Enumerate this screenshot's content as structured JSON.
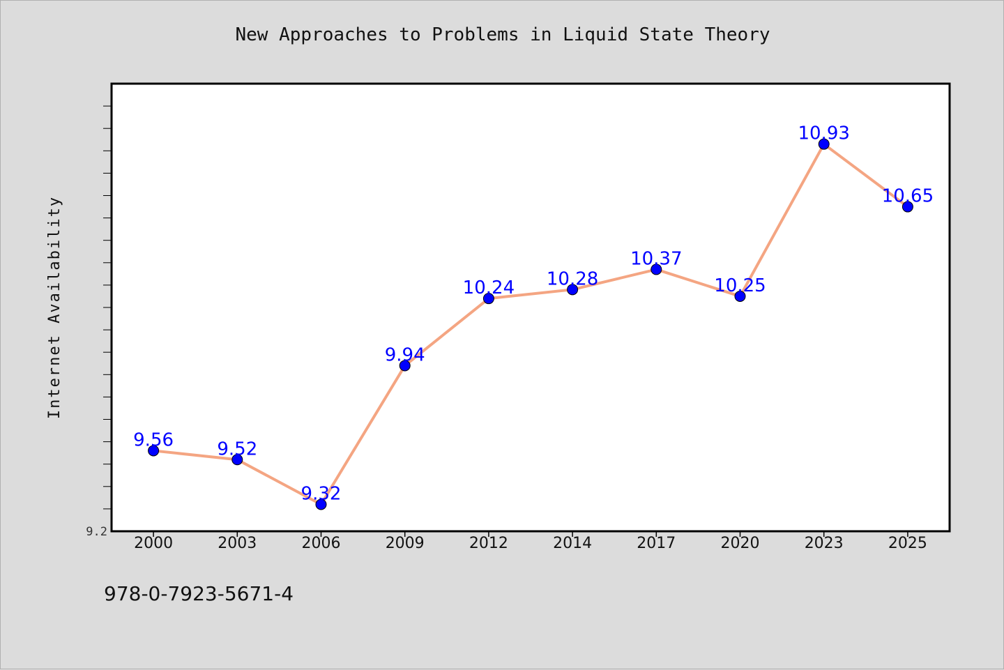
{
  "title": "New Approaches to Problems in Liquid State Theory",
  "caption": "978-0-7923-5671-4",
  "chart_data": {
    "type": "line",
    "title": "New Approaches to Problems in Liquid State Theory",
    "xlabel": "",
    "ylabel": "Internet Availability",
    "categories": [
      "2000",
      "2003",
      "2006",
      "2009",
      "2012",
      "2014",
      "2017",
      "2020",
      "2023",
      "2025"
    ],
    "series": [
      {
        "values": [
          9.56,
          9.52,
          9.32,
          9.94,
          10.24,
          10.28,
          10.37,
          10.25,
          10.93,
          10.65
        ],
        "labels": [
          "9.56",
          "9.52",
          "9.32",
          "9.94",
          "10.24",
          "10.28",
          "10.37",
          "10.25",
          "10.93",
          "10.65"
        ]
      }
    ],
    "ylim": [
      9.2,
      11.2
    ],
    "y_tick_label": "9.2",
    "y_minor_tick_step": 0.1,
    "grid": false,
    "line_color": "#f4a582",
    "marker_color": "#0000ff",
    "label_color": "#0000ff"
  }
}
